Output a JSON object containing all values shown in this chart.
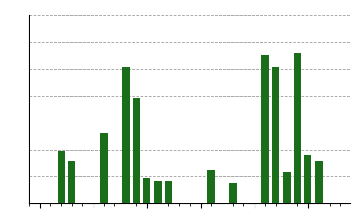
{
  "values": [
    0,
    0,
    0.55,
    0.45,
    0,
    0,
    0.75,
    0,
    1.45,
    1.12,
    0.27,
    0.24,
    0.24,
    0,
    0,
    0,
    0.36,
    0,
    0.21,
    0,
    0,
    1.58,
    1.45,
    0.33,
    1.6,
    0.51,
    0.45,
    0,
    0
  ],
  "bar_color": "#1a6e1a",
  "background_color": "#ffffff",
  "ylim": [
    0,
    2.0
  ],
  "grid_linestyle": "--",
  "grid_color": "#aaaaaa",
  "grid_linewidth": 0.7,
  "spine_color": "#000000",
  "tick_color": "#000000",
  "n_gridlines": 7,
  "bar_width": 0.7,
  "figsize": [
    4.52,
    2.76
  ],
  "dpi": 100
}
